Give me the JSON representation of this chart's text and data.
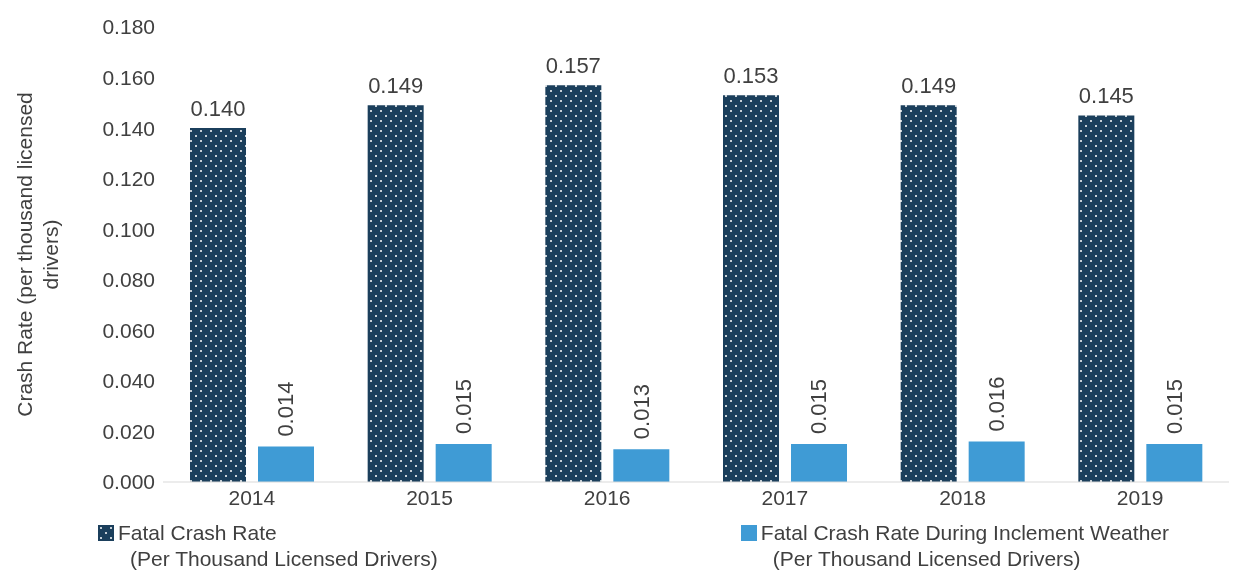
{
  "chart_data": {
    "type": "bar",
    "ylabel": "Crash Rate (per thousand licensed\ndrivers)",
    "categories": [
      "2014",
      "2015",
      "2016",
      "2017",
      "2018",
      "2019"
    ],
    "series": [
      {
        "name": "Fatal Crash Rate\n(Per Thousand Licensed Drivers)",
        "color": "#1b3f5c",
        "values": [
          0.14,
          0.149,
          0.157,
          0.153,
          0.149,
          0.145
        ],
        "value_labels": [
          "0.140",
          "0.149",
          "0.157",
          "0.153",
          "0.149",
          "0.145"
        ]
      },
      {
        "name": "Fatal Crash Rate During Inclement Weather\n(Per Thousand Licensed Drivers)",
        "color": "#3f9bd5",
        "values": [
          0.014,
          0.015,
          0.013,
          0.015,
          0.016,
          0.015
        ],
        "value_labels": [
          "0.014",
          "0.015",
          "0.013",
          "0.015",
          "0.016",
          "0.015"
        ]
      }
    ],
    "ylim": [
      0,
      0.18
    ],
    "yticks": [
      {
        "value": 0,
        "label": "0.000"
      },
      {
        "value": 0.02,
        "label": "0.020"
      },
      {
        "value": 0.04,
        "label": "0.040"
      },
      {
        "value": 0.06,
        "label": "0.060"
      },
      {
        "value": 0.08,
        "label": "0.080"
      },
      {
        "value": 0.1,
        "label": "0.100"
      },
      {
        "value": 0.12,
        "label": "0.120"
      },
      {
        "value": 0.14,
        "label": "0.140"
      },
      {
        "value": 0.16,
        "label": "0.160"
      },
      {
        "value": 0.18,
        "label": "0.180"
      }
    ],
    "grid": false,
    "legend": "bottom"
  }
}
